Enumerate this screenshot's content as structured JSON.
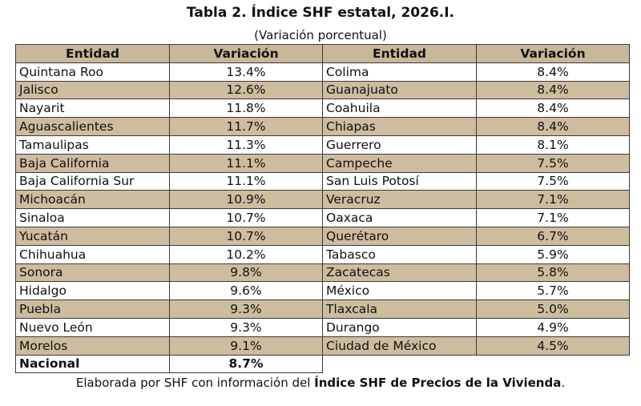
{
  "title": "Tabla 2. Índice SHF estatal, 2026.I.",
  "subtitle": "(Variación porcentual)",
  "headers": [
    "Entidad",
    "Variación",
    "Entidad",
    "Variación"
  ],
  "rows": [
    {
      "e1": "Quintana Roo",
      "v1": "13.4%",
      "e2": "Colima",
      "v2": "8.4%"
    },
    {
      "e1": "Jalisco",
      "v1": "12.6%",
      "e2": "Guanajuato",
      "v2": "8.4%"
    },
    {
      "e1": "Nayarit",
      "v1": "11.8%",
      "e2": "Coahuila",
      "v2": "8.4%"
    },
    {
      "e1": "Aguascalientes",
      "v1": "11.7%",
      "e2": "Chiapas",
      "v2": "8.4%"
    },
    {
      "e1": "Tamaulipas",
      "v1": "11.3%",
      "e2": "Guerrero",
      "v2": "8.1%"
    },
    {
      "e1": "Baja California",
      "v1": "11.1%",
      "e2": "Campeche",
      "v2": "7.5%"
    },
    {
      "e1": "Baja California Sur",
      "v1": "11.1%",
      "e2": "San Luis Potosí",
      "v2": "7.5%"
    },
    {
      "e1": "Michoacán",
      "v1": "10.9%",
      "e2": "Veracruz",
      "v2": "7.1%"
    },
    {
      "e1": "Sinaloa",
      "v1": "10.7%",
      "e2": "Oaxaca",
      "v2": "7.1%"
    },
    {
      "e1": "Yucatán",
      "v1": "10.7%",
      "e2": "Querétaro",
      "v2": "6.7%"
    },
    {
      "e1": "Chihuahua",
      "v1": "10.2%",
      "e2": "Tabasco",
      "v2": "5.9%"
    },
    {
      "e1": "Sonora",
      "v1": "9.8%",
      "e2": "Zacatecas",
      "v2": "5.8%"
    },
    {
      "e1": "Hidalgo",
      "v1": "9.6%",
      "e2": "México",
      "v2": "5.7%"
    },
    {
      "e1": "Puebla",
      "v1": "9.3%",
      "e2": "Tlaxcala",
      "v2": "5.0%"
    },
    {
      "e1": "Nuevo León",
      "v1": "9.3%",
      "e2": "Durango",
      "v2": "4.9%"
    },
    {
      "e1": "Morelos",
      "v1": "9.1%",
      "e2": "Ciudad de México",
      "v2": "4.5%"
    }
  ],
  "national": {
    "label": "Nacional",
    "value": "8.7%"
  },
  "footer": {
    "prefix": "Elaborada por SHF con información del ",
    "bold": "Índice SHF de Precios de la Vivienda",
    "suffix": "."
  },
  "colors": {
    "header_bg": "#c9b79a",
    "shaded_row_bg": "#cdbc9e",
    "border": "#3a3a3a"
  }
}
